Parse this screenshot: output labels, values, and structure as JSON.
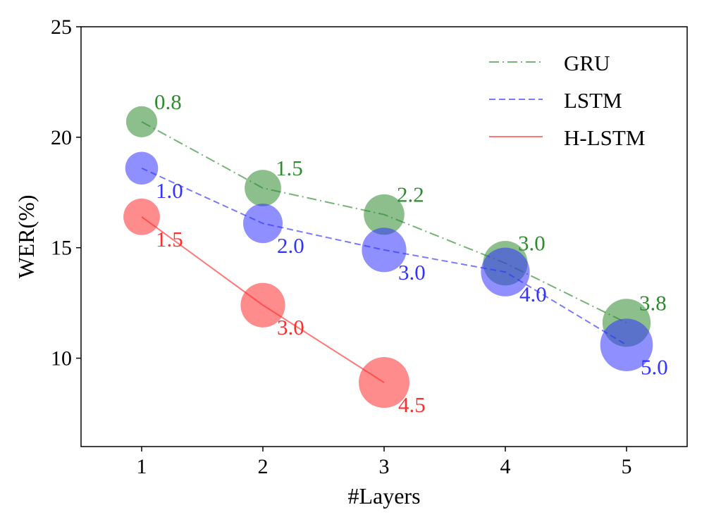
{
  "chart_data": {
    "type": "scatter",
    "xlabel": "#Layers",
    "ylabel": "WER(%)",
    "xlim": [
      0.5,
      5.5
    ],
    "ylim": [
      6,
      25
    ],
    "xticks": [
      "1",
      "2",
      "3",
      "4",
      "5"
    ],
    "yticks": [
      "10",
      "15",
      "20",
      "25"
    ],
    "grid": false,
    "legend_position": "top-right",
    "series": [
      {
        "name": "GRU",
        "color": "#2e8b2e",
        "line_style": "dash-dot",
        "x": [
          1,
          2,
          3,
          4,
          5
        ],
        "y": [
          20.7,
          17.7,
          16.5,
          14.3,
          11.6
        ],
        "size_labels": [
          "0.8",
          "1.5",
          "2.2",
          "3.0",
          "3.8"
        ]
      },
      {
        "name": "LSTM",
        "color": "#3333ff",
        "line_style": "dashed",
        "x": [
          1,
          2,
          3,
          4,
          5
        ],
        "y": [
          18.6,
          16.1,
          14.9,
          13.9,
          10.6
        ],
        "size_labels": [
          "1.0",
          "2.0",
          "3.0",
          "4.0",
          "5.0"
        ]
      },
      {
        "name": "H-LSTM",
        "color": "#ff2e2e",
        "line_style": "solid",
        "x": [
          1,
          2,
          3
        ],
        "y": [
          16.4,
          12.4,
          8.9
        ],
        "size_labels": [
          "1.5",
          "3.0",
          "4.5"
        ]
      }
    ]
  }
}
